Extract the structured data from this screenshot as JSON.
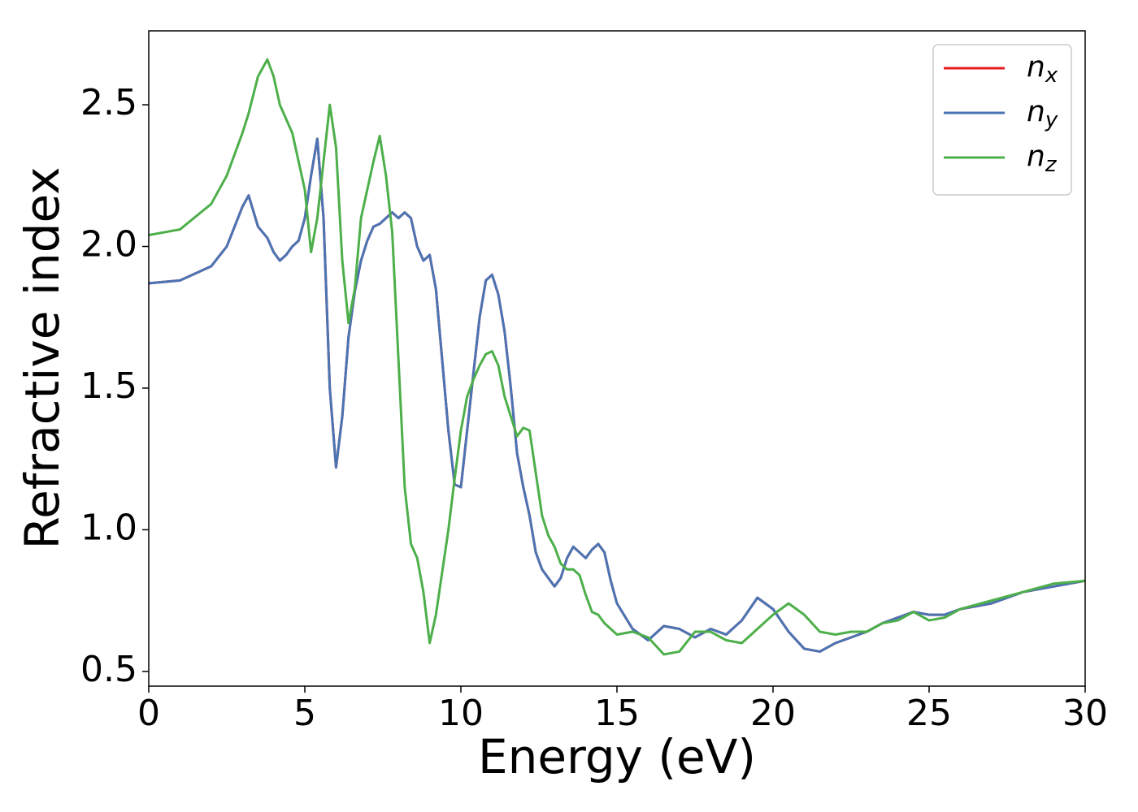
{
  "chart_data": {
    "type": "line",
    "xlabel": "Energy (eV)",
    "ylabel": "Refractive index",
    "xlim": [
      0,
      30
    ],
    "ylim": [
      0.448,
      2.761
    ],
    "xticks": [
      0,
      5,
      10,
      15,
      20,
      25,
      30
    ],
    "yticks": [
      0.5,
      {
        "value": 1,
        "label": "1.0"
      },
      1.5,
      {
        "value": 2,
        "label": "2.0"
      },
      2.5
    ],
    "grid": false,
    "legend": "upper right",
    "x": [
      0,
      1,
      2,
      2.5,
      3,
      3.2,
      3.5,
      3.8,
      4,
      4.2,
      4.4,
      4.6,
      4.8,
      5,
      5.2,
      5.4,
      5.6,
      5.8,
      6,
      6.2,
      6.4,
      6.6,
      6.8,
      7,
      7.2,
      7.4,
      7.6,
      7.8,
      8,
      8.2,
      8.4,
      8.6,
      8.8,
      9,
      9.2,
      9.4,
      9.6,
      9.8,
      10,
      10.2,
      10.4,
      10.6,
      10.8,
      11,
      11.2,
      11.4,
      11.6,
      11.8,
      12,
      12.2,
      12.4,
      12.6,
      12.8,
      13,
      13.2,
      13.4,
      13.6,
      13.8,
      14,
      14.2,
      14.4,
      14.6,
      14.8,
      15,
      15.5,
      16,
      16.5,
      17,
      17.5,
      18,
      18.5,
      19,
      19.5,
      20,
      20.5,
      21,
      21.5,
      22,
      22.5,
      23,
      23.5,
      24,
      24.5,
      25,
      25.5,
      26,
      27,
      28,
      29,
      30
    ],
    "series": [
      {
        "name": "nx",
        "color": "#e41a1c",
        "values": [
          1.87,
          1.88,
          1.93,
          2.0,
          2.14,
          2.18,
          2.07,
          2.03,
          1.98,
          1.95,
          1.97,
          2.0,
          2.02,
          2.1,
          2.25,
          2.38,
          2.1,
          1.5,
          1.22,
          1.4,
          1.68,
          1.84,
          1.95,
          2.02,
          2.07,
          2.08,
          2.1,
          2.12,
          2.1,
          2.12,
          2.1,
          2.0,
          1.95,
          1.97,
          1.85,
          1.6,
          1.35,
          1.16,
          1.15,
          1.35,
          1.55,
          1.75,
          1.88,
          1.9,
          1.83,
          1.7,
          1.5,
          1.27,
          1.15,
          1.05,
          0.92,
          0.86,
          0.83,
          0.8,
          0.83,
          0.9,
          0.94,
          0.92,
          0.9,
          0.93,
          0.95,
          0.92,
          0.82,
          0.74,
          0.65,
          0.61,
          0.66,
          0.65,
          0.62,
          0.65,
          0.63,
          0.68,
          0.76,
          0.72,
          0.64,
          0.58,
          0.57,
          0.6,
          0.62,
          0.64,
          0.67,
          0.69,
          0.71,
          0.7,
          0.7,
          0.72,
          0.74,
          0.78,
          0.8,
          0.82
        ]
      },
      {
        "name": "ny",
        "color": "#4a74b4",
        "values": [
          1.87,
          1.88,
          1.93,
          2.0,
          2.14,
          2.18,
          2.07,
          2.03,
          1.98,
          1.95,
          1.97,
          2.0,
          2.02,
          2.1,
          2.25,
          2.38,
          2.1,
          1.5,
          1.22,
          1.4,
          1.68,
          1.84,
          1.95,
          2.02,
          2.07,
          2.08,
          2.1,
          2.12,
          2.1,
          2.12,
          2.1,
          2.0,
          1.95,
          1.97,
          1.85,
          1.6,
          1.35,
          1.16,
          1.15,
          1.35,
          1.55,
          1.75,
          1.88,
          1.9,
          1.83,
          1.7,
          1.5,
          1.27,
          1.15,
          1.05,
          0.92,
          0.86,
          0.83,
          0.8,
          0.83,
          0.9,
          0.94,
          0.92,
          0.9,
          0.93,
          0.95,
          0.92,
          0.82,
          0.74,
          0.65,
          0.61,
          0.66,
          0.65,
          0.62,
          0.65,
          0.63,
          0.68,
          0.76,
          0.72,
          0.64,
          0.58,
          0.57,
          0.6,
          0.62,
          0.64,
          0.67,
          0.69,
          0.71,
          0.7,
          0.7,
          0.72,
          0.74,
          0.78,
          0.8,
          0.82
        ]
      },
      {
        "name": "nz",
        "color": "#4daf4a",
        "values": [
          2.04,
          2.06,
          2.15,
          2.25,
          2.4,
          2.47,
          2.6,
          2.66,
          2.6,
          2.5,
          2.45,
          2.4,
          2.3,
          2.2,
          1.98,
          2.1,
          2.3,
          2.5,
          2.35,
          1.95,
          1.73,
          1.85,
          2.1,
          2.2,
          2.3,
          2.39,
          2.25,
          2.05,
          1.6,
          1.15,
          0.95,
          0.9,
          0.78,
          0.6,
          0.7,
          0.85,
          1.0,
          1.18,
          1.35,
          1.47,
          1.53,
          1.58,
          1.62,
          1.63,
          1.58,
          1.47,
          1.4,
          1.33,
          1.36,
          1.35,
          1.2,
          1.05,
          0.98,
          0.94,
          0.88,
          0.86,
          0.86,
          0.84,
          0.77,
          0.71,
          0.7,
          0.67,
          0.65,
          0.63,
          0.64,
          0.62,
          0.56,
          0.57,
          0.64,
          0.64,
          0.61,
          0.6,
          0.65,
          0.7,
          0.74,
          0.7,
          0.64,
          0.63,
          0.64,
          0.64,
          0.67,
          0.68,
          0.71,
          0.68,
          0.69,
          0.72,
          0.75,
          0.78,
          0.81,
          0.82
        ]
      }
    ]
  }
}
